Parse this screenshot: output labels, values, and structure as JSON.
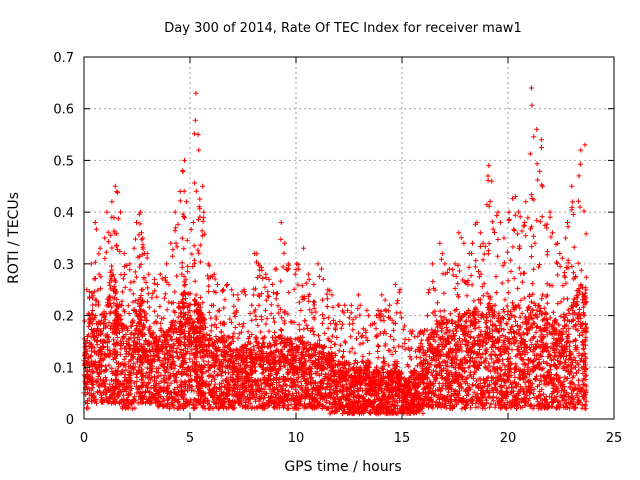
{
  "chart_data": {
    "type": "scatter",
    "title": "Day 300 of 2014, Rate Of TEC Index for receiver maw1",
    "xlabel": "GPS time / hours",
    "ylabel": "ROTI / TECUs",
    "xlim": [
      0,
      25
    ],
    "ylim": [
      0,
      0.7
    ],
    "x_ticks": [
      0,
      5,
      10,
      15,
      20,
      25
    ],
    "y_ticks": [
      0,
      0.1,
      0.2,
      0.3,
      0.4,
      0.5,
      0.6,
      0.7
    ],
    "x_tick_labels": [
      "0",
      "5",
      "10",
      "15",
      "20",
      "25"
    ],
    "y_tick_labels": [
      "0",
      "0.1",
      "0.2",
      "0.3",
      "0.4",
      "0.5",
      "0.6",
      "0.7"
    ],
    "grid": true,
    "marker": "plus",
    "color": "#ff0000",
    "series": [
      {
        "x": [
          0.0,
          0.2,
          0.4,
          0.6,
          0.8,
          1.0,
          1.2,
          1.4,
          1.5,
          1.6,
          1.8,
          2.0,
          2.2,
          2.4,
          2.6,
          2.7,
          2.8,
          3.0,
          3.2,
          3.4,
          3.6,
          3.8,
          4.0,
          4.2,
          4.4,
          4.6,
          4.7,
          4.8,
          5.0,
          5.2,
          5.3,
          5.4,
          5.5,
          5.6,
          5.8,
          6.0,
          6.2,
          6.4,
          6.6,
          6.8,
          7.0,
          7.2,
          7.4,
          7.6,
          7.8,
          8.0,
          8.2,
          8.4,
          8.6,
          8.8,
          9.0,
          9.2,
          9.4,
          9.6,
          9.8,
          10.0,
          10.2,
          10.4,
          10.6,
          10.8,
          11.0,
          11.2,
          11.4,
          11.6,
          11.8,
          12.0,
          12.2,
          12.4,
          12.6,
          12.8,
          13.0,
          13.2,
          13.4,
          13.6,
          13.8,
          14.0,
          14.2,
          14.4,
          14.6,
          14.8,
          15.0,
          15.2,
          15.4,
          15.6,
          15.8,
          16.0,
          16.2,
          16.4,
          16.6,
          16.8,
          17.0,
          17.2,
          17.4,
          17.6,
          17.8,
          18.0,
          18.2,
          18.4,
          18.6,
          18.8,
          19.0,
          19.2,
          19.4,
          19.6,
          19.8,
          20.0,
          20.2,
          20.4,
          20.6,
          20.8,
          21.0,
          21.2,
          21.4,
          21.6,
          21.8,
          22.0,
          22.2,
          22.4,
          22.6,
          22.8,
          23.0,
          23.2,
          23.4,
          23.6
        ],
        "y_min": [
          0.02,
          0.03,
          0.03,
          0.03,
          0.03,
          0.03,
          0.03,
          0.03,
          0.03,
          0.03,
          0.02,
          0.02,
          0.02,
          0.03,
          0.03,
          0.03,
          0.03,
          0.03,
          0.03,
          0.02,
          0.02,
          0.02,
          0.02,
          0.02,
          0.02,
          0.02,
          0.02,
          0.02,
          0.02,
          0.02,
          0.03,
          0.03,
          0.03,
          0.02,
          0.02,
          0.02,
          0.02,
          0.02,
          0.02,
          0.02,
          0.02,
          0.02,
          0.02,
          0.02,
          0.02,
          0.02,
          0.02,
          0.02,
          0.02,
          0.02,
          0.02,
          0.02,
          0.02,
          0.02,
          0.02,
          0.02,
          0.02,
          0.02,
          0.02,
          0.02,
          0.02,
          0.02,
          0.02,
          0.01,
          0.01,
          0.01,
          0.01,
          0.01,
          0.01,
          0.01,
          0.01,
          0.01,
          0.01,
          0.01,
          0.01,
          0.01,
          0.01,
          0.01,
          0.01,
          0.01,
          0.01,
          0.01,
          0.01,
          0.01,
          0.01,
          0.02,
          0.02,
          0.02,
          0.02,
          0.02,
          0.02,
          0.02,
          0.02,
          0.02,
          0.02,
          0.02,
          0.02,
          0.02,
          0.02,
          0.02,
          0.02,
          0.02,
          0.02,
          0.02,
          0.02,
          0.02,
          0.02,
          0.02,
          0.02,
          0.02,
          0.02,
          0.02,
          0.02,
          0.02,
          0.02,
          0.02,
          0.02,
          0.02,
          0.02,
          0.02,
          0.02,
          0.02,
          0.02,
          0.02
        ],
        "y_max": [
          0.25,
          0.3,
          0.38,
          0.33,
          0.35,
          0.4,
          0.42,
          0.45,
          0.44,
          0.4,
          0.32,
          0.3,
          0.33,
          0.38,
          0.4,
          0.36,
          0.32,
          0.28,
          0.27,
          0.26,
          0.28,
          0.3,
          0.34,
          0.4,
          0.44,
          0.48,
          0.5,
          0.42,
          0.38,
          0.63,
          0.55,
          0.52,
          0.45,
          0.4,
          0.3,
          0.28,
          0.26,
          0.25,
          0.26,
          0.25,
          0.24,
          0.24,
          0.25,
          0.24,
          0.22,
          0.32,
          0.3,
          0.28,
          0.27,
          0.26,
          0.29,
          0.38,
          0.34,
          0.3,
          0.28,
          0.3,
          0.33,
          0.28,
          0.27,
          0.26,
          0.3,
          0.29,
          0.25,
          0.24,
          0.22,
          0.22,
          0.22,
          0.21,
          0.22,
          0.24,
          0.22,
          0.21,
          0.2,
          0.2,
          0.21,
          0.24,
          0.23,
          0.22,
          0.26,
          0.25,
          0.18,
          0.17,
          0.17,
          0.16,
          0.17,
          0.2,
          0.25,
          0.3,
          0.34,
          0.32,
          0.3,
          0.29,
          0.3,
          0.36,
          0.34,
          0.32,
          0.34,
          0.38,
          0.36,
          0.34,
          0.49,
          0.46,
          0.4,
          0.38,
          0.35,
          0.4,
          0.43,
          0.4,
          0.38,
          0.42,
          0.64,
          0.56,
          0.54,
          0.45,
          0.4,
          0.36,
          0.34,
          0.32,
          0.35,
          0.38,
          0.45,
          0.47,
          0.52,
          0.53
        ],
        "y_typ": [
          0.1,
          0.13,
          0.15,
          0.12,
          0.13,
          0.15,
          0.18,
          0.17,
          0.16,
          0.14,
          0.12,
          0.11,
          0.12,
          0.13,
          0.14,
          0.13,
          0.12,
          0.11,
          0.1,
          0.1,
          0.11,
          0.11,
          0.12,
          0.13,
          0.14,
          0.16,
          0.17,
          0.14,
          0.13,
          0.15,
          0.14,
          0.14,
          0.13,
          0.12,
          0.11,
          0.1,
          0.1,
          0.1,
          0.1,
          0.1,
          0.09,
          0.09,
          0.09,
          0.09,
          0.09,
          0.1,
          0.1,
          0.1,
          0.09,
          0.09,
          0.1,
          0.11,
          0.1,
          0.1,
          0.09,
          0.1,
          0.1,
          0.09,
          0.09,
          0.09,
          0.09,
          0.09,
          0.08,
          0.08,
          0.07,
          0.07,
          0.07,
          0.07,
          0.07,
          0.07,
          0.07,
          0.07,
          0.06,
          0.06,
          0.06,
          0.07,
          0.06,
          0.06,
          0.07,
          0.06,
          0.05,
          0.05,
          0.06,
          0.06,
          0.07,
          0.08,
          0.1,
          0.11,
          0.12,
          0.12,
          0.12,
          0.12,
          0.12,
          0.13,
          0.13,
          0.13,
          0.13,
          0.14,
          0.13,
          0.13,
          0.15,
          0.14,
          0.13,
          0.13,
          0.13,
          0.14,
          0.14,
          0.14,
          0.13,
          0.14,
          0.15,
          0.14,
          0.14,
          0.13,
          0.13,
          0.12,
          0.12,
          0.12,
          0.13,
          0.13,
          0.15,
          0.15,
          0.16,
          0.16
        ]
      }
    ]
  }
}
